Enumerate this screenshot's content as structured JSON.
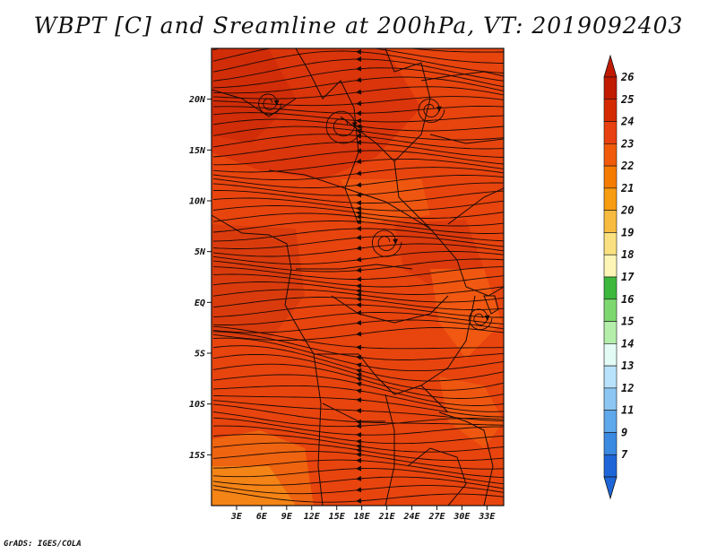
{
  "title": "WBPT [C] and Sreamline at 200hPa, VT: 2019092403",
  "credit": "GrADS: IGES/COLA",
  "map": {
    "lon_range": [
      0,
      35
    ],
    "lat_range": [
      -20,
      25
    ],
    "lat_ticks": [
      {
        "value": 20,
        "label": "20N"
      },
      {
        "value": 15,
        "label": "15N"
      },
      {
        "value": 10,
        "label": "10N"
      },
      {
        "value": 5,
        "label": "5N"
      },
      {
        "value": 0,
        "label": "EQ"
      },
      {
        "value": -5,
        "label": "5S"
      },
      {
        "value": -10,
        "label": "10S"
      },
      {
        "value": -15,
        "label": "15S"
      }
    ],
    "lon_ticks": [
      {
        "value": 3,
        "label": "3E"
      },
      {
        "value": 6,
        "label": "6E"
      },
      {
        "value": 9,
        "label": "9E"
      },
      {
        "value": 12,
        "label": "12E"
      },
      {
        "value": 15,
        "label": "15E"
      },
      {
        "value": 18,
        "label": "18E"
      },
      {
        "value": 21,
        "label": "21E"
      },
      {
        "value": 24,
        "label": "24E"
      },
      {
        "value": 27,
        "label": "27E"
      },
      {
        "value": 30,
        "label": "30E"
      },
      {
        "value": 33,
        "label": "33E"
      }
    ],
    "field_color": "#e8440e",
    "streamline_color": "#1a0a06"
  },
  "colorbar": {
    "labels": [
      "26",
      "25",
      "24",
      "23",
      "22",
      "21",
      "20",
      "19",
      "18",
      "17",
      "16",
      "15",
      "14",
      "13",
      "12",
      "11",
      "9",
      "7"
    ],
    "colors": [
      "#c01a00",
      "#d52a00",
      "#e8400e",
      "#f05a08",
      "#f57b00",
      "#f79c10",
      "#f7bb40",
      "#fbe080",
      "#fdf5b5",
      "#3cb83c",
      "#7ed870",
      "#b4eeaa",
      "#e2fbf4",
      "#b8e2fb",
      "#8cc6f3",
      "#5ea8ec",
      "#3a8ae2",
      "#1e66d8"
    ]
  }
}
